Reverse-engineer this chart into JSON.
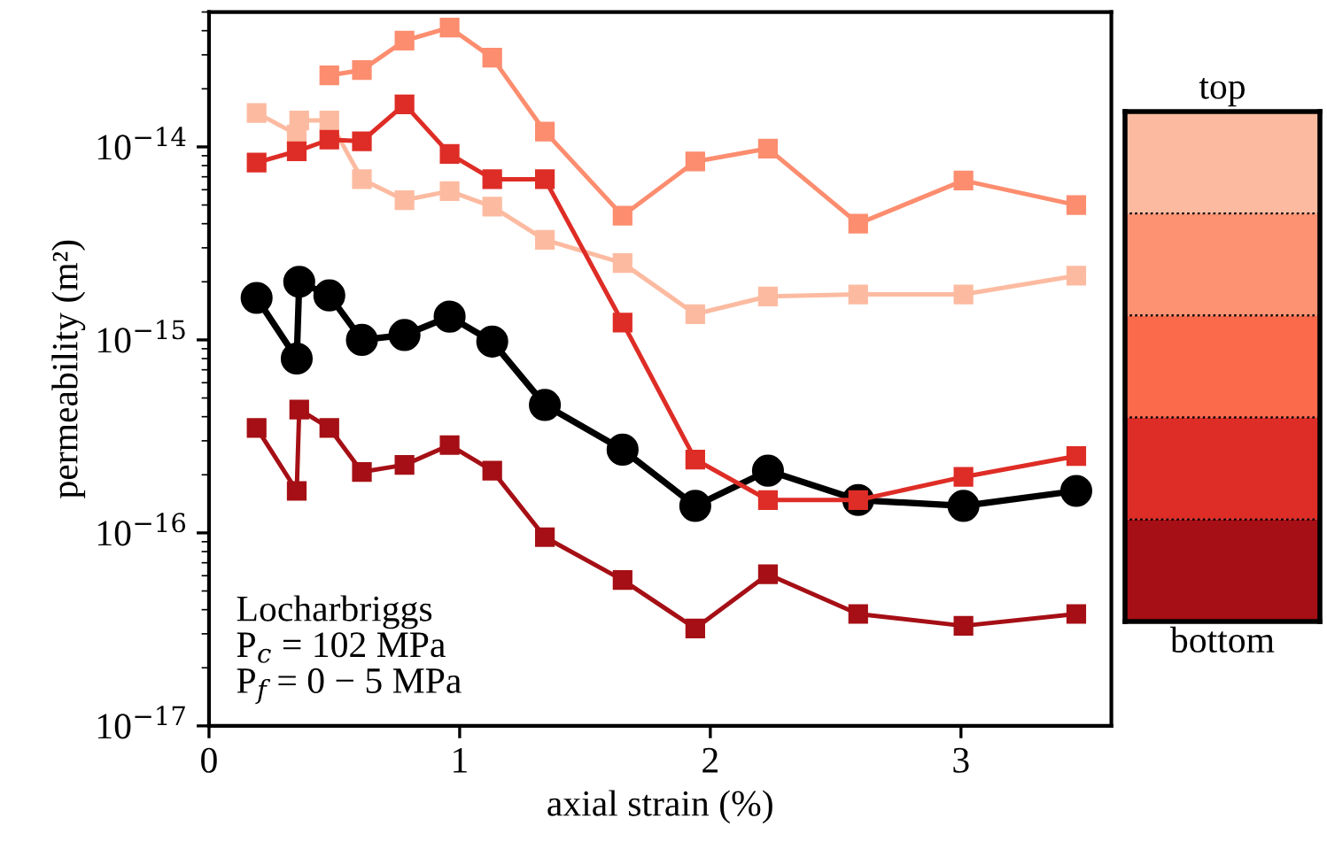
{
  "chart_data": {
    "type": "line",
    "xlabel": "axial strain (%)",
    "ylabel": "permeability (m²)",
    "log": "y",
    "xlim": [
      0,
      3.6
    ],
    "xticks": [
      0,
      1,
      2,
      3
    ],
    "ylim": [
      1e-17,
      5e-14
    ],
    "yticks": [
      {
        "value": 1e-17,
        "label": "10$^{−17}$"
      },
      {
        "value": 1e-16,
        "label": "10$^{−16}$"
      },
      {
        "value": 1e-15,
        "label": "10$^{−15}$"
      },
      {
        "value": 1e-14,
        "label": "10$^{−14}$"
      }
    ],
    "x": [
      0.19,
      0.35,
      0.36,
      0.48,
      0.61,
      0.78,
      0.96,
      1.13,
      1.34,
      1.65,
      1.94,
      2.23,
      2.59,
      3.01,
      3.46
    ],
    "grid": false,
    "legend": false,
    "series": [
      {
        "color": "#000000",
        "marker": "circle",
        "values": [
          1.65e-15,
          8e-16,
          2e-15,
          1.7e-15,
          1e-15,
          1.06e-15,
          1.32e-15,
          9.8e-16,
          4.6e-16,
          2.7e-16,
          1.38e-16,
          2.1e-16,
          1.48e-16,
          1.38e-16,
          1.65e-16
        ]
      },
      {
        "color": "#fcbba1",
        "marker": "square",
        "values": [
          1.5e-14,
          1.16e-14,
          1.37e-14,
          1.37e-14,
          6.8e-15,
          5.3e-15,
          5.9e-15,
          4.9e-15,
          3.3e-15,
          2.5e-15,
          1.36e-15,
          1.68e-15,
          1.72e-15,
          1.72e-15,
          2.15e-15
        ]
      },
      {
        "color": "#fc8d6f",
        "marker": "square",
        "values": [
          null,
          null,
          null,
          2.35e-14,
          2.5e-14,
          3.55e-14,
          4.15e-14,
          2.9e-14,
          1.2e-14,
          4.4e-15,
          8.4e-15,
          9.8e-15,
          4e-15,
          6.7e-15,
          5e-15
        ]
      },
      {
        "color": "#de2d26",
        "marker": "square",
        "x": [
          0.19,
          0.35,
          0.48,
          0.61,
          0.78,
          0.96,
          1.13,
          1.34,
          1.65,
          1.94,
          2.23,
          2.59,
          3.01,
          3.46
        ],
        "values": [
          8.3e-15,
          9.5e-15,
          1.09e-14,
          1.07e-14,
          1.66e-14,
          9.2e-15,
          6.8e-15,
          6.8e-15,
          1.23e-15,
          2.4e-16,
          1.48e-16,
          1.48e-16,
          1.95e-16,
          2.5e-16
        ]
      },
      {
        "color": "#a50f15",
        "marker": "square",
        "values": [
          3.5e-16,
          1.65e-16,
          4.35e-16,
          3.5e-16,
          2.07e-16,
          2.25e-16,
          2.85e-16,
          2.1e-16,
          9.5e-17,
          5.7e-17,
          3.2e-17,
          6.1e-17,
          3.8e-17,
          3.3e-17,
          3.8e-17
        ]
      }
    ],
    "annotations": [
      "Locharbriggs\nP$_{c}$ = 102 MPa\nP$_{f}$ = 0 − 5 MPa",
      "top",
      "bottom"
    ]
  }
}
